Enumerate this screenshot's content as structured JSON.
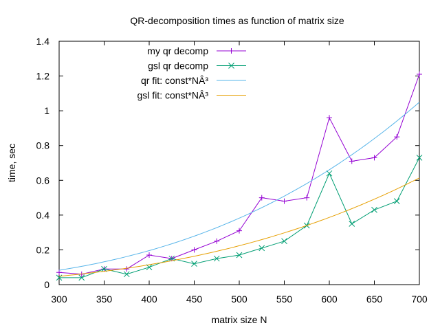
{
  "chart_data": {
    "type": "line",
    "title": "QR-decomposition times as function of matrix size",
    "xlabel": "matrix size N",
    "ylabel": "time, sec",
    "xlim": [
      300,
      700
    ],
    "ylim": [
      0,
      1.4
    ],
    "x_ticks": [
      300,
      350,
      400,
      450,
      500,
      550,
      600,
      650,
      700
    ],
    "x_tick_labels": [
      "300",
      "350",
      "400",
      "450",
      "500",
      "550",
      "600",
      "650",
      "700"
    ],
    "y_ticks": [
      0,
      0.2,
      0.4,
      0.6,
      0.8,
      1.0,
      1.2,
      1.4
    ],
    "y_tick_labels": [
      "0",
      "0.2",
      "0.4",
      "0.6",
      "0.8",
      "1",
      "1.2",
      "1.4"
    ],
    "grid": false,
    "legend_position": "top-left",
    "series": [
      {
        "name": "my qr decomp",
        "kind": "points-lines",
        "marker": "plus",
        "color": "#9400d3",
        "x": [
          300,
          325,
          350,
          375,
          400,
          425,
          450,
          475,
          500,
          525,
          550,
          575,
          600,
          625,
          650,
          675,
          700
        ],
        "y": [
          0.07,
          0.06,
          0.09,
          0.09,
          0.17,
          0.15,
          0.2,
          0.25,
          0.31,
          0.5,
          0.48,
          0.5,
          0.96,
          0.71,
          0.73,
          0.85,
          1.21
        ]
      },
      {
        "name": "gsl qr decomp",
        "kind": "points-lines",
        "marker": "cross",
        "color": "#009e73",
        "x": [
          300,
          325,
          350,
          375,
          400,
          425,
          450,
          475,
          500,
          525,
          550,
          575,
          600,
          625,
          650,
          675,
          700
        ],
        "y": [
          0.04,
          0.04,
          0.09,
          0.06,
          0.1,
          0.15,
          0.12,
          0.15,
          0.17,
          0.21,
          0.25,
          0.34,
          0.64,
          0.35,
          0.43,
          0.48,
          0.73
        ]
      },
      {
        "name": "qr fit:  const*NÂ³",
        "kind": "curve",
        "color": "#56b4e9",
        "coefficient": 3.06e-09
      },
      {
        "name": "gsl fit:  const*NÂ³",
        "kind": "curve",
        "color": "#e69f00",
        "coefficient": 1.79e-09
      }
    ]
  }
}
